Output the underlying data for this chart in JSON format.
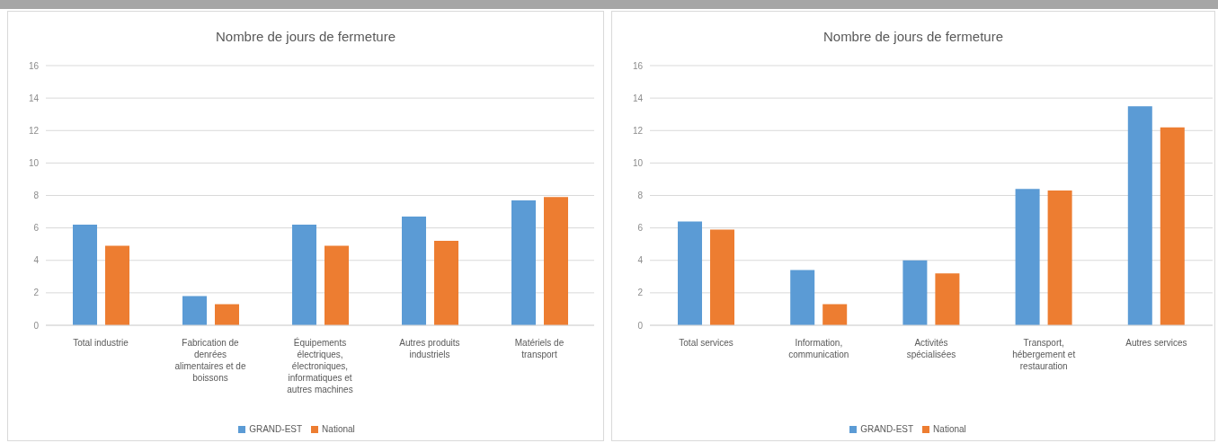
{
  "chart_data": [
    {
      "type": "bar",
      "title": "Nombre de jours de fermeture",
      "categories": [
        "Total industrie",
        "Fabrication de denrées alimentaires et de boissons",
        "Équipements électriques, électroniques, informatiques et autres machines",
        "Autres produits industriels",
        "Matériels de transport"
      ],
      "series": [
        {
          "name": "GRAND-EST",
          "color": "#5b9bd5",
          "values": [
            6.2,
            1.8,
            6.2,
            6.7,
            7.7
          ]
        },
        {
          "name": "National",
          "color": "#ed7d31",
          "values": [
            4.9,
            1.3,
            4.9,
            5.2,
            7.9
          ]
        }
      ],
      "ylim": [
        0,
        16
      ],
      "yticks": [
        0,
        2,
        4,
        6,
        8,
        10,
        12,
        14,
        16
      ],
      "grid": "y",
      "legend": "bottom"
    },
    {
      "type": "bar",
      "title": "Nombre de jours de fermeture",
      "categories": [
        "Total services",
        "Information, communication",
        "Activités spécialisées",
        "Transport, hébergement et restauration",
        "Autres services"
      ],
      "series": [
        {
          "name": "GRAND-EST",
          "color": "#5b9bd5",
          "values": [
            6.4,
            3.4,
            4.0,
            8.4,
            13.5
          ]
        },
        {
          "name": "National",
          "color": "#ed7d31",
          "values": [
            5.9,
            1.3,
            3.2,
            8.3,
            12.2
          ]
        }
      ],
      "ylim": [
        0,
        16
      ],
      "yticks": [
        0,
        2,
        4,
        6,
        8,
        10,
        12,
        14,
        16
      ],
      "grid": "y",
      "legend": "bottom"
    }
  ]
}
